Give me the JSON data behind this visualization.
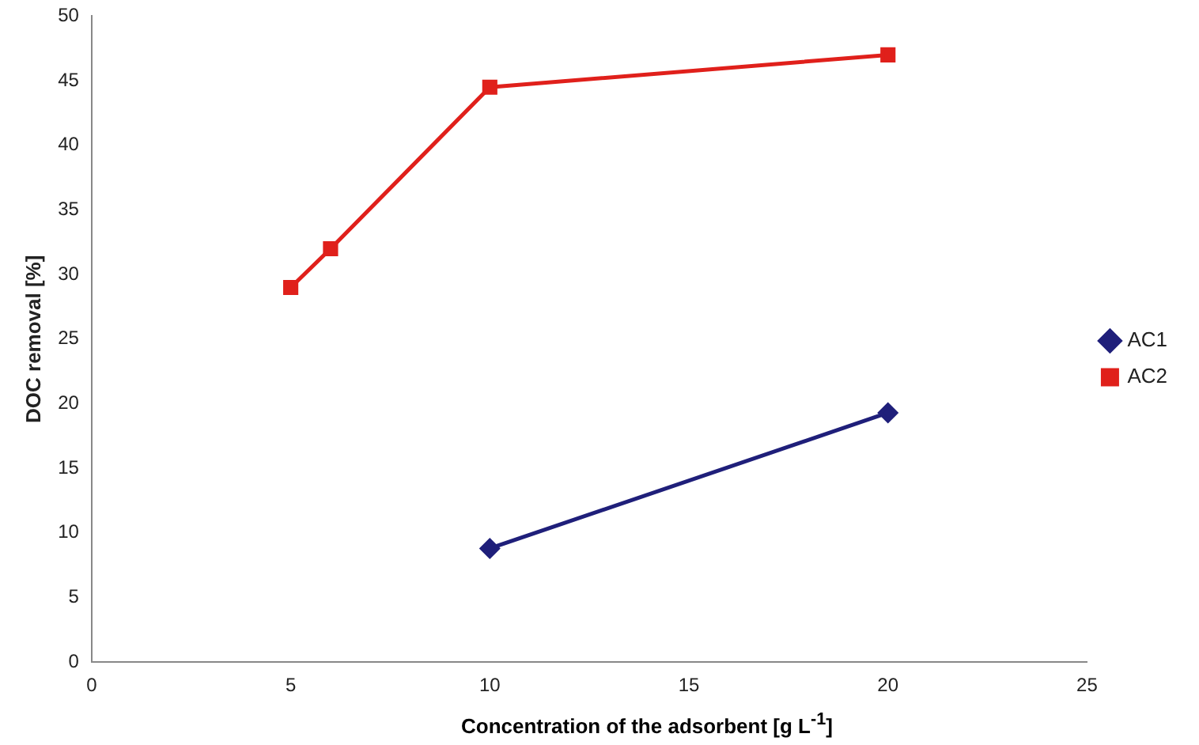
{
  "chart_data": {
    "type": "line",
    "xlabel": "Concentration of the adsorbent [g L$^{-1}$]",
    "ylabel": "DOC removal [%]",
    "xlim": [
      0,
      25
    ],
    "xticks": [
      0,
      5,
      10,
      15,
      20,
      25
    ],
    "ylim": [
      0,
      50
    ],
    "yticks": [
      0,
      5,
      10,
      15,
      20,
      25,
      30,
      35,
      40,
      45,
      50
    ],
    "series": [
      {
        "name": "AC1",
        "color": "#1f1f7a",
        "marker": "diamond",
        "x": [
          10,
          20
        ],
        "values": [
          8.8,
          19.3
        ]
      },
      {
        "name": "AC2",
        "color": "#e0201b",
        "marker": "square",
        "x": [
          5,
          6,
          10,
          20
        ],
        "values": [
          29.0,
          32.0,
          44.5,
          47.0
        ]
      }
    ],
    "legend": "right",
    "grid": false
  }
}
